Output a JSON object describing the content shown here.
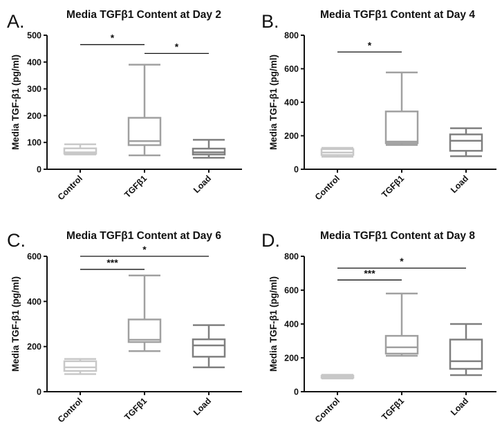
{
  "chart_data": [
    {
      "panel": "A.",
      "type": "box",
      "title": "Media TGFβ1 Content at Day 2",
      "ylabel": "Media TGF-β1 (pg/ml)",
      "ylim": [
        0,
        500
      ],
      "yticks": [
        "0",
        "100",
        "200",
        "300",
        "400",
        "500"
      ],
      "categories": [
        "Control",
        "TGFβ1",
        "Load"
      ],
      "colors": [
        "#c8c8c8",
        "#a0a0a0",
        "#7f7f7f"
      ],
      "boxes": [
        {
          "min": 55,
          "q1": 58,
          "median": 63,
          "q3": 78,
          "max": 93
        },
        {
          "min": 52,
          "q1": 90,
          "median": 105,
          "q3": 192,
          "max": 390
        },
        {
          "min": 43,
          "q1": 55,
          "median": 63,
          "q3": 77,
          "max": 110
        }
      ],
      "comparisons": [
        {
          "from": 0,
          "to": 1,
          "value": 465,
          "label": "*"
        },
        {
          "from": 1,
          "to": 2,
          "value": 432,
          "label": "*"
        }
      ]
    },
    {
      "panel": "B.",
      "type": "box",
      "title": "Media TGFβ1 Content at Day 4",
      "ylabel": "Media TGF-β1 (pg/ml)",
      "ylim": [
        0,
        800
      ],
      "yticks": [
        "0",
        "200",
        "400",
        "600",
        "800"
      ],
      "categories": [
        "Control",
        "TGFβ1",
        "Load"
      ],
      "colors": [
        "#c8c8c8",
        "#a0a0a0",
        "#7f7f7f"
      ],
      "boxes": [
        {
          "min": 75,
          "q1": 85,
          "median": 100,
          "q3": 120,
          "max": 128
        },
        {
          "min": 145,
          "q1": 155,
          "median": 165,
          "q3": 345,
          "max": 578
        },
        {
          "min": 78,
          "q1": 110,
          "median": 170,
          "q3": 208,
          "max": 245
        }
      ],
      "comparisons": [
        {
          "from": 0,
          "to": 1,
          "value": 700,
          "label": "*"
        }
      ]
    },
    {
      "panel": "C.",
      "type": "box",
      "title": "Media TGFβ1 Content at Day 6",
      "ylabel": "Media TGF-β1 (pg/ml)",
      "ylim": [
        0,
        600
      ],
      "yticks": [
        "0",
        "200",
        "400",
        "600"
      ],
      "categories": [
        "Control",
        "TGFβ1",
        "Load"
      ],
      "colors": [
        "#c8c8c8",
        "#a0a0a0",
        "#7f7f7f"
      ],
      "boxes": [
        {
          "min": 78,
          "q1": 92,
          "median": 108,
          "q3": 135,
          "max": 145
        },
        {
          "min": 180,
          "q1": 220,
          "median": 230,
          "q3": 320,
          "max": 515
        },
        {
          "min": 108,
          "q1": 155,
          "median": 205,
          "q3": 232,
          "max": 295
        }
      ],
      "comparisons": [
        {
          "from": 0,
          "to": 1,
          "value": 542,
          "label": "***"
        },
        {
          "from": 0,
          "to": 2,
          "value": 600,
          "label": "*"
        }
      ]
    },
    {
      "panel": "D.",
      "type": "box",
      "title": "Media TGFβ1 Content at Day 8",
      "ylabel": "Media TGF-β1 (pg/ml)",
      "ylim": [
        0,
        800
      ],
      "yticks": [
        "0",
        "200",
        "400",
        "600",
        "800"
      ],
      "categories": [
        "Control",
        "TGFβ1",
        "Load"
      ],
      "colors": [
        "#c8c8c8",
        "#a0a0a0",
        "#7f7f7f"
      ],
      "boxes": [
        {
          "min": 78,
          "q1": 82,
          "median": 88,
          "q3": 95,
          "max": 100
        },
        {
          "min": 212,
          "q1": 225,
          "median": 262,
          "q3": 330,
          "max": 580
        },
        {
          "min": 98,
          "q1": 135,
          "median": 180,
          "q3": 308,
          "max": 400
        }
      ],
      "comparisons": [
        {
          "from": 0,
          "to": 1,
          "value": 660,
          "label": "***"
        },
        {
          "from": 0,
          "to": 2,
          "value": 730,
          "label": "*"
        }
      ]
    }
  ]
}
